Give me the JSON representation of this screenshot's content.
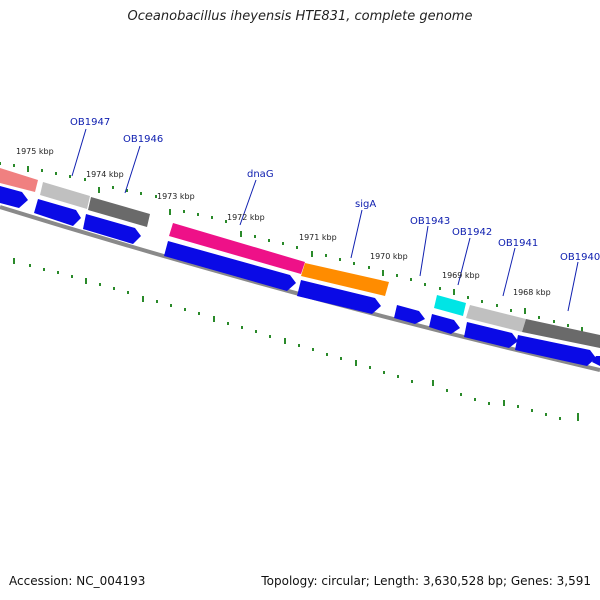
{
  "title": "Oceanobacillus iheyensis HTE831, complete genome",
  "footer": {
    "accession": "Accession: NC_004193",
    "summary": "Topology: circular; Length: 3,630,528 bp; Genes: 3,591"
  },
  "colors": {
    "backbone": "#8a8a8a",
    "tick": "#2a8a2a",
    "cds": "#0a0ae6",
    "label": "#1020b0"
  },
  "kbp_labels": [
    "1975 kbp",
    "1974 kbp",
    "1973 kbp",
    "1972 kbp",
    "1971 kbp",
    "1970 kbp",
    "1969 kbp",
    "1968 kbp"
  ],
  "gene_labels": [
    "OB1947",
    "OB1946",
    "dnaG",
    "sigA",
    "OB1943",
    "OB1942",
    "OB1941",
    "OB1940"
  ],
  "feature_colors": [
    "#f08080",
    "#c0c0c0",
    "#6a6a6a",
    "#ee1188",
    "#ff8c00",
    "#00e5e5",
    "#c0c0c0",
    "#6a6a6a"
  ]
}
